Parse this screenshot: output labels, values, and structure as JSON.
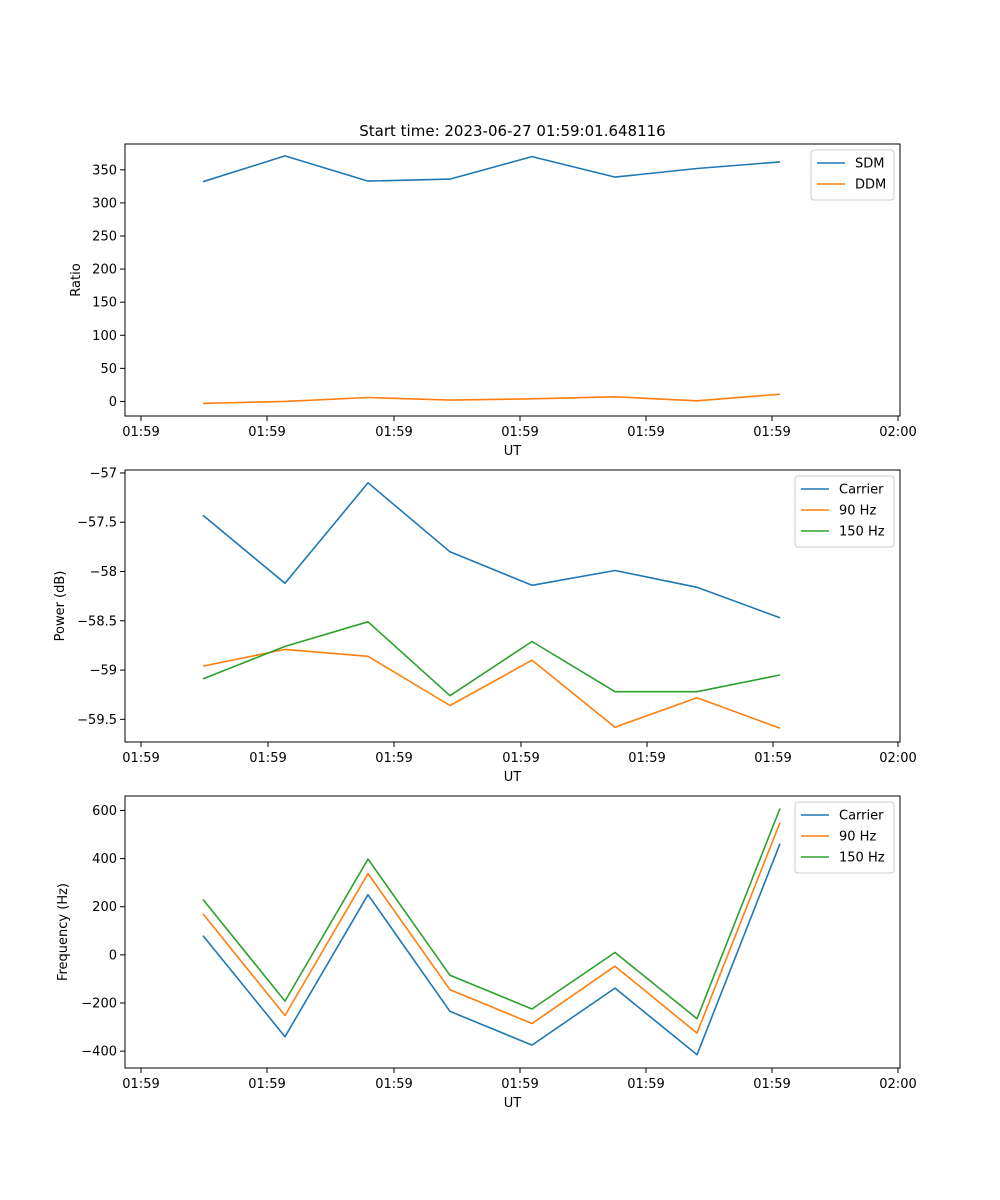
{
  "chart_data": [
    {
      "type": "line",
      "title": "Start time: 2023-06-27 01:59:01.648116",
      "xlabel": "UT",
      "ylabel": "Ratio",
      "x_tick_labels": [
        "01:59",
        "01:59",
        "01:59",
        "01:59",
        "01:59",
        "01:59",
        "01:59",
        "02:00"
      ],
      "y_ticks": [
        0,
        50,
        100,
        150,
        200,
        250,
        300,
        350
      ],
      "ylim": [
        -22,
        389
      ],
      "legend": "top-right",
      "series": [
        {
          "name": "SDM",
          "color": "#1f77b4",
          "values": [
            332,
            371,
            333,
            336,
            370,
            339,
            352,
            362
          ]
        },
        {
          "name": "DDM",
          "color": "#ff7f0e",
          "values": [
            -3,
            0,
            6,
            2,
            4,
            7,
            1,
            11
          ]
        }
      ]
    },
    {
      "type": "line",
      "title": "",
      "xlabel": "UT",
      "ylabel": "Power (dB)",
      "x_tick_labels": [
        "01:59",
        "01:59",
        "01:59",
        "01:59",
        "01:59",
        "01:59",
        "01:59",
        "02:00"
      ],
      "y_ticks": [
        -57.0,
        -57.5,
        -58.0,
        -58.5,
        -59.0,
        -59.5
      ],
      "ylim": [
        -59.73,
        -56.97
      ],
      "legend": "top-right",
      "series": [
        {
          "name": "Carrier",
          "color": "#1f77b4",
          "values": [
            -57.43,
            -58.12,
            -57.1,
            -57.8,
            -58.14,
            -57.99,
            -58.16,
            -58.47
          ]
        },
        {
          "name": "90 Hz",
          "color": "#ff7f0e",
          "values": [
            -58.96,
            -58.79,
            -58.86,
            -59.36,
            -58.9,
            -59.58,
            -59.28,
            -59.59
          ]
        },
        {
          "name": "150 Hz",
          "color": "#2ca02c",
          "values": [
            -59.09,
            -58.76,
            -58.51,
            -59.26,
            -58.71,
            -59.22,
            -59.22,
            -59.05
          ]
        }
      ]
    },
    {
      "type": "line",
      "title": "",
      "xlabel": "UT",
      "ylabel": "Frequency (Hz)",
      "x_tick_labels": [
        "01:59",
        "01:59",
        "01:59",
        "01:59",
        "01:59",
        "01:59",
        "01:59",
        "02:00"
      ],
      "y_ticks": [
        600,
        400,
        200,
        0,
        -200,
        -400
      ],
      "ylim": [
        -470,
        660
      ],
      "legend": "top-right",
      "series": [
        {
          "name": "Carrier",
          "color": "#1f77b4",
          "values": [
            80,
            -340,
            250,
            -235,
            -375,
            -138,
            -415,
            462
          ]
        },
        {
          "name": "90 Hz",
          "color": "#ff7f0e",
          "values": [
            170,
            -252,
            338,
            -145,
            -285,
            -47,
            -325,
            550
          ]
        },
        {
          "name": "150 Hz",
          "color": "#2ca02c",
          "values": [
            230,
            -192,
            398,
            -85,
            -225,
            10,
            -265,
            608
          ]
        }
      ]
    }
  ]
}
